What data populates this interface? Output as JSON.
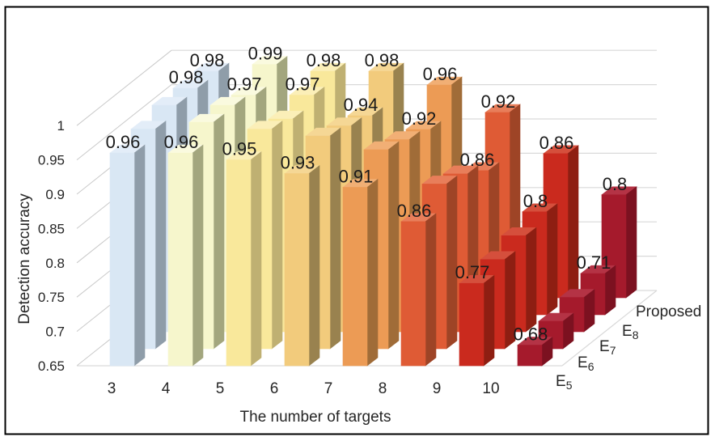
{
  "figure": {
    "background": "#FFFFFF",
    "border_color": "#000000"
  },
  "chart_data": {
    "type": "bar",
    "projection": "3d-oblique",
    "title": "",
    "xlabel": "The number of targets",
    "ylabel": "Detection accuracy",
    "categories": [
      "3",
      "4",
      "5",
      "6",
      "7",
      "8",
      "9",
      "10"
    ],
    "ylim": [
      0.65,
      1.0
    ],
    "y_ticks": [
      "1",
      "0.95",
      "0.9",
      "0.85",
      "0.8",
      "0.75",
      "0.7",
      "0.65"
    ],
    "grid": true,
    "legend_position": "depth-axis-lower-right",
    "series": [
      {
        "name": "E5",
        "base": "E",
        "subscript": "5",
        "values": [
          0.96,
          0.96,
          0.95,
          0.93,
          0.91,
          0.86,
          0.77,
          0.68
        ],
        "labels": [
          "0.96",
          "0.96",
          "0.95",
          "0.93",
          "0.91",
          "0.86",
          "0.77",
          "0.68"
        ],
        "estimated": false
      },
      {
        "name": "E6",
        "base": "E",
        "subscript": "6",
        "values": [
          0.97,
          0.98,
          0.97,
          0.96,
          0.94,
          0.89,
          0.78,
          0.69
        ],
        "labels": null,
        "estimated": true
      },
      {
        "name": "E7",
        "base": "E",
        "subscript": "7",
        "values": [
          0.98,
          0.98,
          0.96,
          0.95,
          0.93,
          0.88,
          0.79,
          0.7
        ],
        "labels": null,
        "estimated": true
      },
      {
        "name": "E8",
        "base": "E",
        "subscript": "8",
        "values": [
          0.98,
          0.97,
          0.97,
          0.94,
          0.92,
          0.86,
          0.8,
          0.71
        ],
        "labels": [
          "0.98",
          "0.97",
          "0.97",
          "0.94",
          "0.92",
          "0.86",
          "0.8",
          "0.71"
        ],
        "estimated": false
      },
      {
        "name": "Proposed",
        "base": "Proposed",
        "subscript": "",
        "values": [
          0.98,
          0.99,
          0.98,
          0.98,
          0.96,
          0.92,
          0.86,
          0.8
        ],
        "labels": [
          "0.98",
          "0.99",
          "0.98",
          "0.98",
          "0.96",
          "0.92",
          "0.86",
          "0.8"
        ],
        "estimated": false
      }
    ],
    "category_colors": [
      {
        "front": "#D9E7F4",
        "top": "#E3EDF8",
        "side": "#8F9DA9"
      },
      {
        "front": "#F6F6CC",
        "top": "#FAFADF",
        "side": "#A3A67E"
      },
      {
        "front": "#F9E89B",
        "top": "#FBEFB8",
        "side": "#BFB072"
      },
      {
        "front": "#F2CB7C",
        "top": "#F5D795",
        "side": "#99824F"
      },
      {
        "front": "#EC9B55",
        "top": "#F1AF75",
        "side": "#A06C38"
      },
      {
        "front": "#DF5B35",
        "top": "#E87E5A",
        "side": "#9E4426"
      },
      {
        "front": "#CA2A1E",
        "top": "#D54F3C",
        "side": "#8E1E12"
      },
      {
        "front": "#A51A2C",
        "top": "#B43345",
        "side": "#7C1120"
      }
    ],
    "gridline_color": "#D9D9D9",
    "depth_tick_line_color": "#C9C9C9",
    "axis_text_color": "#262626",
    "label_text_color": "#1A1A1A"
  }
}
